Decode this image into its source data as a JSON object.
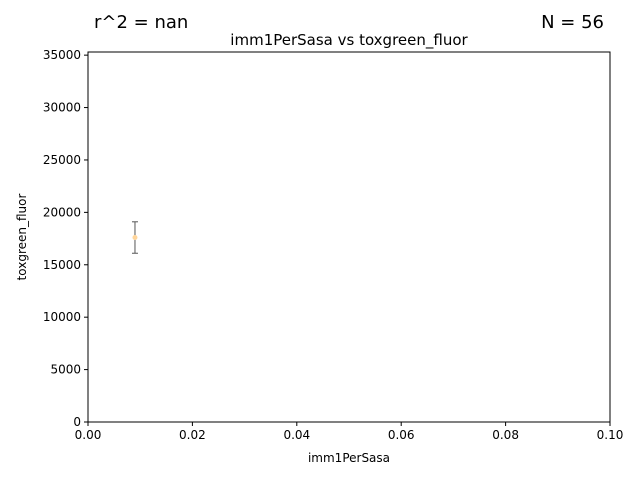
{
  "header": {
    "r2_text": "r^2 = nan",
    "n_text": "N = 56"
  },
  "chart_data": {
    "type": "scatter",
    "title": "imm1PerSasa vs toxgreen_fluor",
    "xlabel": "imm1PerSasa",
    "ylabel": "toxgreen_fluor",
    "xlim": [
      0.0,
      0.1
    ],
    "ylim": [
      0,
      35300
    ],
    "xticks": [
      0.0,
      0.02,
      0.04,
      0.06,
      0.08,
      0.1
    ],
    "xtick_labels": [
      "0.00",
      "0.02",
      "0.04",
      "0.06",
      "0.08",
      "0.10"
    ],
    "yticks": [
      0,
      5000,
      10000,
      15000,
      20000,
      25000,
      30000,
      35000
    ],
    "ytick_labels": [
      "0",
      "5000",
      "10000",
      "15000",
      "20000",
      "25000",
      "30000",
      "35000"
    ],
    "grid": false,
    "points": [
      {
        "x": 0.009,
        "y": 17600,
        "yerr_low": 16100,
        "yerr_high": 19100
      }
    ],
    "colors": {
      "point": "#ffd59a",
      "errorbar": "#555555",
      "axis": "#000000"
    }
  }
}
